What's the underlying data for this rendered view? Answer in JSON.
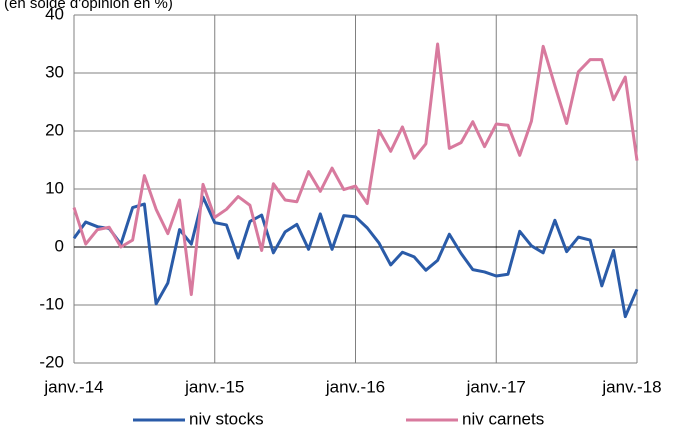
{
  "chart_data": {
    "type": "line",
    "title": "(en solde d'opinion en %)",
    "xlabel": "",
    "ylabel": "",
    "x_tick_labels": [
      "janv.-14",
      "janv.-15",
      "janv.-16",
      "janv.-17",
      "janv.-18"
    ],
    "y_tick_labels": [
      "40",
      "30",
      "20",
      "10",
      "0",
      "-10",
      "-20"
    ],
    "ylim": [
      -20,
      40
    ],
    "y_ticks": [
      40,
      30,
      20,
      10,
      0,
      -10,
      -20
    ],
    "x_range_months": [
      0,
      48
    ],
    "grid": "vertical and horizontal",
    "legend_position": "bottom",
    "colors": {
      "axis": "#000000",
      "grid": "#808080",
      "niv_stocks": "#2a5ba8",
      "niv_carnets": "#d87a9e"
    },
    "series": [
      {
        "name": "niv stocks",
        "color": "#2a5ba8",
        "values": [
          1.5,
          4.3,
          3.5,
          3.2,
          0.5,
          6.8,
          7.4,
          -9.8,
          -6.2,
          3.0,
          0.5,
          8.6,
          4.2,
          3.8,
          -1.9,
          4.4,
          5.5,
          -1.0,
          2.6,
          3.9,
          -0.4,
          5.7,
          -0.4,
          5.4,
          5.2,
          3.3,
          0.7,
          -3.1,
          -0.9,
          -1.7,
          -4.0,
          -2.3,
          2.2,
          -1.1,
          -3.9,
          -4.3,
          -5.0,
          -4.7,
          2.7,
          0.2,
          -1.0,
          4.6,
          -0.8,
          1.7,
          1.2,
          -6.7,
          -0.6,
          -12.0,
          -7.3
        ]
      },
      {
        "name": "niv carnets",
        "color": "#d87a9e",
        "values": [
          6.8,
          0.5,
          3.0,
          3.4,
          0.0,
          1.2,
          12.3,
          6.5,
          2.3,
          8.1,
          -8.2,
          10.8,
          5.1,
          6.5,
          8.7,
          7.2,
          -0.6,
          10.9,
          8.1,
          7.8,
          13.0,
          9.6,
          13.6,
          9.9,
          10.5,
          7.5,
          20.1,
          16.5,
          20.7,
          15.3,
          17.8,
          35.0,
          17.0,
          18.0,
          21.6,
          17.3,
          21.2,
          21.0,
          15.8,
          21.7,
          34.6,
          27.8,
          21.3,
          30.2,
          32.3,
          32.3,
          25.4,
          29.3,
          14.9
        ]
      }
    ]
  }
}
